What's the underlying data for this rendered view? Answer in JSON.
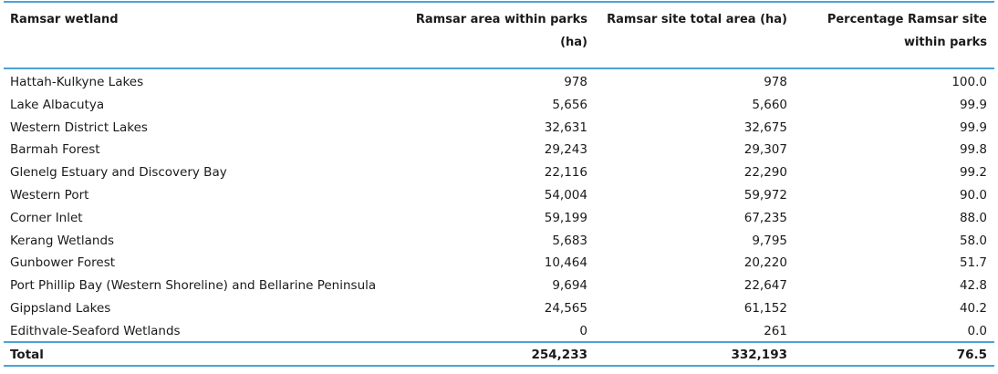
{
  "table": {
    "headers": {
      "wetland": "Ramsar wetland",
      "within_parks": [
        "Ramsar area within parks",
        "(ha)"
      ],
      "total_area": "Ramsar site total area (ha)",
      "percentage": [
        "Percentage Ramsar site",
        "within parks"
      ]
    },
    "rows": [
      {
        "name": "Hattah-Kulkyne Lakes",
        "within": "978",
        "total": "978",
        "pct": "100.0"
      },
      {
        "name": "Lake Albacutya",
        "within": "5,656",
        "total": "5,660",
        "pct": "99.9"
      },
      {
        "name": "Western District Lakes",
        "within": "32,631",
        "total": "32,675",
        "pct": "99.9"
      },
      {
        "name": "Barmah Forest",
        "within": "29,243",
        "total": "29,307",
        "pct": "99.8"
      },
      {
        "name": "Glenelg Estuary and Discovery Bay",
        "within": "22,116",
        "total": "22,290",
        "pct": "99.2"
      },
      {
        "name": "Western Port",
        "within": "54,004",
        "total": "59,972",
        "pct": "90.0"
      },
      {
        "name": "Corner Inlet",
        "within": "59,199",
        "total": "67,235",
        "pct": "88.0"
      },
      {
        "name": "Kerang Wetlands",
        "within": "5,683",
        "total": "9,795",
        "pct": "58.0"
      },
      {
        "name": "Gunbower Forest",
        "within": "10,464",
        "total": "20,220",
        "pct": "51.7"
      },
      {
        "name": "Port Phillip Bay (Western Shoreline) and Bellarine Peninsula",
        "within": "9,694",
        "total": "22,647",
        "pct": "42.8"
      },
      {
        "name": "Gippsland Lakes",
        "within": "24,565",
        "total": "61,152",
        "pct": "40.2"
      },
      {
        "name": "Edithvale-Seaford Wetlands",
        "within": "0",
        "total": "261",
        "pct": "0.0"
      }
    ],
    "total": {
      "label": "Total",
      "within": "254,233",
      "total": "332,193",
      "pct": "76.5"
    }
  }
}
